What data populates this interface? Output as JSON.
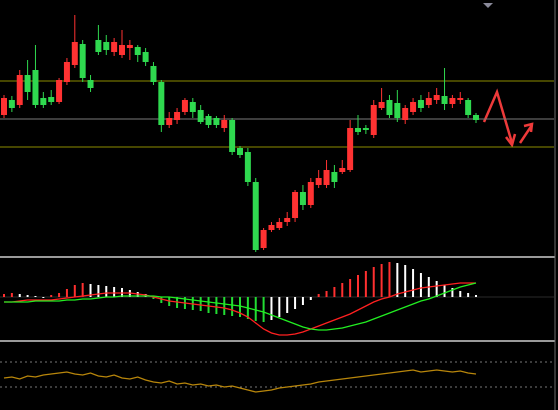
{
  "chart_data": [
    {
      "type": "candlestick",
      "up_color": "#ff3232",
      "down_color": "#2fd94f",
      "ylim": [
        0,
        255
      ],
      "hlines": [
        {
          "value": 174,
          "color": "#8c8c00"
        },
        {
          "value": 136,
          "color": "#7a7a7a"
        },
        {
          "value": 108,
          "color": "#8c8c00"
        }
      ],
      "open": [
        140,
        155,
        150,
        180,
        185,
        157,
        158,
        153,
        173,
        190,
        211,
        175,
        215,
        213,
        203,
        200,
        207,
        208,
        203,
        189,
        173,
        130,
        135,
        143,
        153,
        145,
        139,
        137,
        127,
        135,
        107,
        103,
        73,
        7,
        25,
        27,
        33,
        37,
        63,
        50,
        70,
        70,
        83,
        83,
        85,
        127,
        127,
        120,
        147,
        155,
        152,
        135,
        143,
        155,
        150,
        155,
        159,
        151,
        155,
        155,
        140
      ],
      "high": [
        160,
        159,
        185,
        195,
        210,
        163,
        165,
        177,
        197,
        240,
        215,
        180,
        230,
        220,
        217,
        225,
        215,
        210,
        207,
        193,
        175,
        143,
        147,
        157,
        157,
        150,
        141,
        139,
        140,
        137,
        109,
        107,
        77,
        27,
        33,
        37,
        43,
        65,
        70,
        77,
        85,
        95,
        90,
        95,
        135,
        140,
        130,
        155,
        167,
        160,
        165,
        150,
        157,
        160,
        163,
        167,
        187,
        160,
        163,
        157,
        142
      ],
      "low": [
        137,
        143,
        147,
        155,
        147,
        147,
        150,
        151,
        170,
        187,
        173,
        163,
        200,
        200,
        199,
        197,
        195,
        193,
        189,
        170,
        123,
        127,
        131,
        140,
        137,
        131,
        127,
        127,
        123,
        100,
        97,
        69,
        3,
        5,
        23,
        25,
        29,
        33,
        45,
        47,
        67,
        67,
        67,
        81,
        83,
        120,
        121,
        117,
        145,
        137,
        133,
        131,
        140,
        143,
        147,
        151,
        145,
        147,
        151,
        137,
        132
      ],
      "close": [
        157,
        147,
        180,
        163,
        150,
        150,
        153,
        175,
        193,
        213,
        177,
        167,
        203,
        205,
        213,
        210,
        210,
        200,
        193,
        173,
        130,
        137,
        143,
        155,
        143,
        133,
        130,
        130,
        135,
        103,
        100,
        73,
        5,
        25,
        30,
        33,
        37,
        63,
        50,
        73,
        77,
        85,
        73,
        87,
        127,
        123,
        125,
        150,
        153,
        140,
        137,
        147,
        153,
        147,
        157,
        160,
        151,
        157,
        157,
        140,
        135
      ]
    },
    {
      "type": "macd",
      "ylim": [
        -43,
        39
      ],
      "zero_color": "#555555",
      "up_color": "#ff3030",
      "down_color": "#22dd33",
      "fade_color": "#ffffff",
      "histogram": [
        3,
        4,
        3,
        2,
        1,
        0,
        2,
        4,
        8,
        12,
        14,
        13,
        12,
        11,
        10,
        9,
        7,
        5,
        3,
        -2,
        -6,
        -9,
        -11,
        -12,
        -13,
        -14,
        -16,
        -17,
        -18,
        -19,
        -20,
        -22,
        -24,
        -25,
        -23,
        -20,
        -16,
        -12,
        -8,
        -3,
        3,
        6,
        10,
        14,
        18,
        22,
        26,
        30,
        33,
        35,
        34,
        32,
        28,
        24,
        20,
        16,
        12,
        9,
        6,
        4,
        2
      ],
      "series": [
        {
          "color": "#ff2020",
          "values": [
            -5,
            -5,
            -4,
            -3,
            -3,
            -3,
            -3,
            -2,
            -1,
            0,
            1,
            2,
            3,
            4,
            4,
            4,
            4,
            3,
            2,
            0,
            -2,
            -4,
            -5,
            -6,
            -7,
            -8,
            -9,
            -10,
            -11,
            -13,
            -16,
            -20,
            -26,
            -32,
            -36,
            -38,
            -38,
            -37,
            -35,
            -32,
            -29,
            -26,
            -23,
            -20,
            -17,
            -13,
            -9,
            -5,
            -2,
            0,
            3,
            5,
            7,
            9,
            10,
            11,
            12,
            13,
            14,
            14,
            14
          ]
        },
        {
          "color": "#22ee22",
          "values": [
            -5,
            -5,
            -5,
            -5,
            -4,
            -4,
            -4,
            -4,
            -3,
            -3,
            -2,
            -2,
            -1,
            0,
            0,
            1,
            1,
            1,
            1,
            1,
            0,
            0,
            -1,
            -2,
            -3,
            -4,
            -5,
            -6,
            -7,
            -8,
            -9,
            -11,
            -13,
            -15,
            -18,
            -21,
            -24,
            -27,
            -30,
            -32,
            -33,
            -33,
            -32,
            -31,
            -29,
            -27,
            -25,
            -22,
            -19,
            -16,
            -13,
            -10,
            -7,
            -4,
            -2,
            1,
            4,
            7,
            10,
            12,
            14
          ]
        }
      ]
    },
    {
      "type": "line",
      "ylim": [
        0,
        68
      ],
      "hlines": [
        {
          "value": 48,
          "color": "#777777"
        },
        {
          "value": 23,
          "color": "#777777"
        }
      ],
      "series": [
        {
          "color": "#b8860b",
          "values": [
            32,
            33,
            31,
            34,
            33,
            35,
            36,
            37,
            38,
            36,
            35,
            37,
            34,
            33,
            35,
            32,
            31,
            33,
            30,
            28,
            27,
            29,
            26,
            27,
            25,
            26,
            24,
            25,
            23,
            24,
            22,
            20,
            18,
            19,
            20,
            22,
            23,
            24,
            25,
            26,
            28,
            29,
            30,
            31,
            32,
            33,
            34,
            35,
            36,
            37,
            38,
            39,
            40,
            38,
            39,
            40,
            39,
            38,
            39,
            37,
            36
          ]
        }
      ]
    }
  ]
}
